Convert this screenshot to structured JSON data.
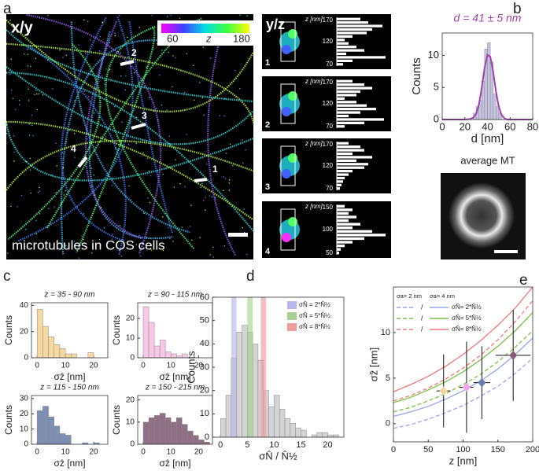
{
  "panel_labels": [
    "a",
    "b",
    "c",
    "d",
    "e"
  ],
  "xy_image": {
    "title": "x/y",
    "colorbar": {
      "min": 60,
      "label": "z",
      "max": 180
    },
    "markers": [
      "1",
      "2",
      "3",
      "4"
    ],
    "caption": "microtubules in COS cells"
  },
  "yz_panel": {
    "title": "y/z",
    "axis_label": "z [nm]",
    "insets": [
      {
        "label": "1",
        "yticks": [
          170,
          120,
          70
        ],
        "values": [
          30,
          40,
          58,
          45,
          38,
          20,
          10,
          15,
          25,
          35,
          12,
          62,
          20,
          8
        ]
      },
      {
        "label": "2",
        "yticks": [
          170,
          120,
          70
        ],
        "values": [
          20,
          35,
          45,
          30,
          25,
          10,
          25,
          38,
          50,
          30,
          15,
          60,
          35,
          10
        ]
      },
      {
        "label": "3",
        "yticks": [
          170,
          120,
          70
        ],
        "values": [
          15,
          30,
          35,
          20,
          45,
          25,
          40,
          35,
          20,
          15,
          10,
          8,
          6,
          4
        ]
      },
      {
        "label": "4",
        "yticks": [
          150,
          100,
          50
        ],
        "values": [
          10,
          20,
          15,
          25,
          15,
          30,
          20,
          45,
          62,
          35,
          20,
          10,
          5,
          3
        ]
      }
    ]
  },
  "average_mt": {
    "title": "average MT"
  },
  "chart_data": [
    {
      "type": "histogram",
      "title": "d = 41 ± 5 nm",
      "title_color": "#a040a8",
      "xlabel": "d [nm]",
      "ylabel": "Counts",
      "bins": [
        27.5,
        30,
        32.5,
        35,
        37.5,
        40,
        42.5,
        45,
        47.5,
        50,
        52.5
      ],
      "counts": [
        1,
        2,
        3,
        6,
        11,
        12,
        9,
        4,
        2,
        1
      ],
      "color": "#c5c3e0",
      "fit": {
        "x": [
          0,
          20,
          25,
          27.5,
          30,
          32.5,
          35,
          37.5,
          40,
          42.5,
          45,
          47.5,
          50,
          52.5,
          55,
          57.5,
          60,
          80
        ],
        "values": [
          0,
          0,
          0.1,
          0.3,
          0.9,
          2.4,
          5.0,
          8.1,
          10.1,
          9.8,
          7.5,
          4.4,
          2.0,
          0.7,
          0.2,
          0,
          0,
          0
        ],
        "color": "#a040b0"
      },
      "xlim": [
        0,
        80
      ],
      "ylim": [
        0,
        13.5
      ],
      "xticks": [
        0,
        20,
        40,
        60,
        80
      ],
      "yticks": [
        0,
        5,
        10
      ]
    },
    {
      "type": "histogram",
      "title": "z = 35 - 90 nm",
      "xlabel": "σẑ [nm]",
      "ylabel": "Counts",
      "bins": [
        0,
        2,
        4,
        6,
        8,
        10,
        12,
        14,
        16,
        18,
        20,
        22
      ],
      "counts": [
        37,
        24,
        16,
        10,
        7,
        3,
        3,
        0,
        0,
        4,
        0
      ],
      "color": "#f5d9a0",
      "xlim": [
        -2,
        25
      ],
      "ylim": [
        0,
        42
      ],
      "xticks": [
        0,
        10,
        20
      ],
      "yticks": [
        0,
        20,
        40
      ]
    },
    {
      "type": "histogram",
      "title": "z = 90 - 115 nm",
      "xlabel": "σẑ [nm]",
      "ylabel": "Counts",
      "bins": [
        0,
        2,
        4,
        6,
        8,
        10,
        12,
        14,
        16,
        18,
        20
      ],
      "counts": [
        26,
        18,
        6,
        9,
        3,
        2,
        1,
        2,
        0,
        0
      ],
      "color": "#f7c8e6",
      "xlim": [
        -2,
        25
      ],
      "ylim": [
        0,
        28
      ],
      "xticks": [
        0,
        10,
        20
      ],
      "yticks": [
        0,
        10,
        20
      ]
    },
    {
      "type": "histogram",
      "title": "z = 115 - 150 nm",
      "xlabel": "σẑ [nm]",
      "ylabel": "Counts",
      "bins": [
        0,
        2,
        4,
        6,
        8,
        10,
        12,
        14,
        16,
        18,
        20,
        22
      ],
      "counts": [
        22,
        25,
        18,
        12,
        7,
        6,
        0,
        0,
        1,
        0,
        1
      ],
      "color": "#7d8fb3",
      "xlim": [
        -2,
        25
      ],
      "ylim": [
        0,
        32
      ],
      "xticks": [
        0,
        10,
        20
      ],
      "yticks": [
        0,
        10,
        20,
        30
      ]
    },
    {
      "type": "histogram",
      "title": "z = 150 - 215 nm",
      "xlabel": "σẑ [nm]",
      "ylabel": "Counts",
      "bins": [
        0,
        2,
        4,
        6,
        8,
        10,
        12,
        14,
        16,
        18,
        20,
        22,
        24
      ],
      "counts": [
        10,
        12,
        13,
        14,
        12,
        10,
        12,
        9,
        6,
        4,
        2,
        1
      ],
      "color": "#8e6f83",
      "xlim": [
        -2,
        25
      ],
      "ylim": [
        0,
        22
      ],
      "xticks": [
        0,
        10,
        20
      ],
      "yticks": [
        0,
        10,
        20
      ]
    },
    {
      "type": "histogram",
      "xlabel": "σN̂ / N̂½",
      "ylabel": "Counts",
      "bins": [
        0,
        1,
        2,
        3,
        4,
        5,
        6,
        7,
        8,
        9,
        10,
        11,
        12,
        13,
        14,
        15,
        16,
        17,
        18,
        19,
        20,
        21,
        22
      ],
      "counts": [
        8,
        18,
        34,
        45,
        48,
        45,
        40,
        33,
        20,
        13,
        18,
        12,
        8,
        6,
        4,
        3,
        0,
        1,
        2,
        2,
        1,
        1
      ],
      "color": "#d4d4d4",
      "bands": [
        {
          "name": "σN̂ = 2*N̂½",
          "color": "#b8b8ee",
          "range": [
            2,
            3
          ]
        },
        {
          "name": "σN̂ = 5*N̂½",
          "color": "#a8d090",
          "range": [
            5,
            6
          ]
        },
        {
          "name": "σN̂ = 8*N̂½",
          "color": "#f09a9a",
          "range": [
            7.5,
            8.5
          ]
        }
      ],
      "xlim": [
        -1.5,
        23
      ],
      "ylim": [
        0,
        60
      ],
      "xticks": [
        0,
        5,
        10,
        15,
        20
      ],
      "yticks": [
        0,
        10,
        20,
        30,
        40,
        50,
        60
      ]
    },
    {
      "type": "line",
      "xlabel": "z [nm]",
      "ylabel": "σẑ [nm]",
      "x": [
        0,
        25,
        50,
        75,
        100,
        125,
        150,
        175,
        200
      ],
      "series": [
        {
          "color": "#9aa6ee",
          "style": "dashed",
          "values": [
            -0.5,
            -0.1,
            0.5,
            1.2,
            2.0,
            3.0,
            4.1,
            5.5,
            7.2
          ]
        },
        {
          "color": "#9aa6ee",
          "style": "solid",
          "values": [
            0.8,
            1.3,
            1.9,
            2.7,
            3.6,
            4.7,
            6.0,
            7.6,
            9.4
          ]
        },
        {
          "color": "#7cc04a",
          "style": "dashed",
          "values": [
            1.3,
            1.8,
            2.5,
            3.3,
            4.3,
            5.4,
            6.8,
            8.4,
            10.2
          ]
        },
        {
          "color": "#7cc04a",
          "style": "solid",
          "values": [
            2.3,
            2.9,
            3.7,
            4.6,
            5.7,
            7.0,
            8.5,
            10.2,
            12.2
          ]
        },
        {
          "color": "#f07878",
          "style": "dashed",
          "values": [
            2.5,
            3.1,
            3.9,
            4.9,
            6.1,
            7.5,
            9.2,
            11.2,
            13.5
          ]
        },
        {
          "color": "#f07878",
          "style": "solid",
          "values": [
            3.5,
            4.3,
            5.2,
            6.3,
            7.6,
            9.1,
            10.8,
            12.7,
            15.0
          ]
        }
      ],
      "legend": {
        "columns": [
          "σa= 2 nm",
          "σa= 4 nm"
        ],
        "separator": "/",
        "rows": [
          "σN̂= 2*N̂½",
          "σN̂= 5*N̂½",
          "σN̂= 8*N̂½"
        ]
      },
      "points": {
        "x": [
          72,
          105,
          127,
          172
        ],
        "values": [
          3.6,
          4.0,
          4.5,
          7.5
        ],
        "errors": [
          4,
          5,
          4,
          5
        ],
        "x_errors": [
          10,
          10,
          12,
          25
        ],
        "colors": [
          "#f2d49a",
          "#f3a6e3",
          "#6b7fae",
          "#8a5a78"
        ]
      },
      "xlim": [
        0,
        200
      ],
      "ylim": [
        -2,
        15
      ],
      "xticks": [
        0,
        50,
        100,
        150,
        200
      ],
      "yticks": [
        0,
        5,
        10
      ]
    }
  ]
}
